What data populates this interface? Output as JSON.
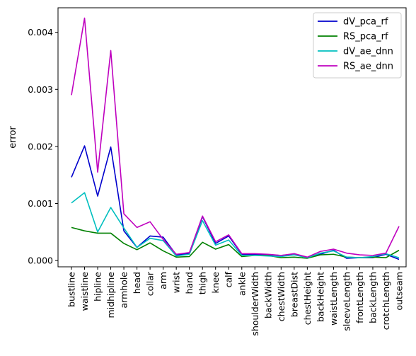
{
  "chart_data": {
    "type": "line",
    "title": "",
    "xlabel": "",
    "ylabel": "error",
    "ylim": [
      -0.00011,
      0.00443
    ],
    "yticks": [
      "0.000",
      "0.001",
      "0.002",
      "0.003",
      "0.004"
    ],
    "ytick_values": [
      0,
      0.001,
      0.002,
      0.003,
      0.004
    ],
    "grid": false,
    "legend_position": "top-right",
    "categories": [
      "bustline",
      "waistline",
      "hipline",
      "midhipline",
      "armhole",
      "head",
      "collar",
      "arm",
      "wrist",
      "hand",
      "thigh",
      "knee",
      "calf",
      "ankle",
      "shoulderWidth",
      "backWidth",
      "chestWidth",
      "breastDist",
      "chestHeight",
      "backHeight",
      "waistLength",
      "sleeveLength",
      "frontLength",
      "backLength",
      "crotchLength",
      "outseam"
    ],
    "series": [
      {
        "name": "dV_pca_rf",
        "color": "#0000cc",
        "values": [
          0.00146,
          0.00201,
          0.00113,
          0.00199,
          0.00052,
          0.00023,
          0.00043,
          0.00041,
          0.0001,
          0.00012,
          0.00077,
          0.0003,
          0.00043,
          0.00011,
          0.00011,
          0.0001,
          9e-05,
          0.00011,
          5e-05,
          0.00011,
          0.00018,
          4e-05,
          5e-05,
          5e-05,
          0.00011,
          2e-05
        ]
      },
      {
        "name": "RS_pca_rf",
        "color": "#008000",
        "values": [
          0.00058,
          0.00052,
          0.00048,
          0.00048,
          0.0003,
          0.00019,
          0.00031,
          0.00017,
          6e-05,
          7e-05,
          0.00032,
          0.0002,
          0.00028,
          7e-05,
          9e-05,
          9e-05,
          5e-05,
          6e-05,
          4e-05,
          0.0001,
          0.00011,
          6e-05,
          5e-05,
          6e-05,
          5e-05,
          0.00018
        ]
      },
      {
        "name": "dV_ae_dnn",
        "color": "#00bfbf",
        "values": [
          0.00101,
          0.00119,
          0.0005,
          0.00093,
          0.00057,
          0.00023,
          0.00039,
          0.00035,
          8e-05,
          0.00011,
          0.0007,
          0.00027,
          0.00036,
          9e-05,
          9e-05,
          8e-05,
          7e-05,
          0.0001,
          5e-05,
          0.00013,
          0.00017,
          6e-05,
          5e-05,
          7e-05,
          0.00012,
          5e-05
        ]
      },
      {
        "name": "RS_ae_dnn",
        "color": "#bf00bf",
        "values": [
          0.0029,
          0.00425,
          0.00155,
          0.00368,
          0.00082,
          0.00058,
          0.00068,
          0.00037,
          0.00011,
          0.00014,
          0.00078,
          0.00033,
          0.00045,
          0.00012,
          0.00012,
          0.00011,
          9e-05,
          0.00012,
          6e-05,
          0.00016,
          0.0002,
          0.00013,
          0.0001,
          9e-05,
          0.00013,
          0.0006
        ]
      }
    ]
  }
}
